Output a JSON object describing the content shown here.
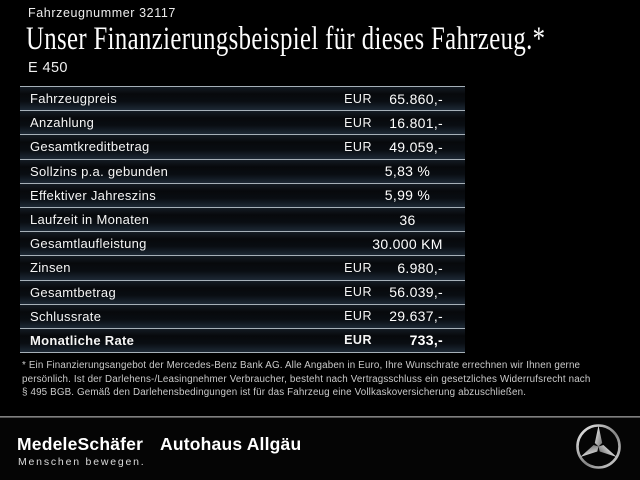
{
  "header": {
    "vehicle_number": "Fahrzeugnummer 32117",
    "title": "Unser Finanzierungsbeispiel für dieses Fahrzeug.*",
    "model": "E 450"
  },
  "finance_table": {
    "rows": [
      {
        "label": "Fahrzeugpreis",
        "currency": "EUR",
        "value": "65.860,-",
        "bold": false
      },
      {
        "label": "Anzahlung",
        "currency": "EUR",
        "value": "16.801,-",
        "bold": false
      },
      {
        "label": "Gesamtkreditbetrag",
        "currency": "EUR",
        "value": "49.059,-",
        "bold": false
      },
      {
        "label": "Sollzins p.a. gebunden",
        "currency": "",
        "value": "5,83 %",
        "bold": false
      },
      {
        "label": "Effektiver Jahreszins",
        "currency": "",
        "value": "5,99 %",
        "bold": false
      },
      {
        "label": "Laufzeit in Monaten",
        "currency": "",
        "value": "36",
        "bold": false
      },
      {
        "label": "Gesamtlaufleistung",
        "currency": "",
        "value": "30.000 KM",
        "bold": false
      },
      {
        "label": "Zinsen",
        "currency": "EUR",
        "value": "6.980,-",
        "bold": false
      },
      {
        "label": "Gesamtbetrag",
        "currency": "EUR",
        "value": "56.039,-",
        "bold": false
      },
      {
        "label": "Schlussrate",
        "currency": "EUR",
        "value": "29.637,-",
        "bold": false
      },
      {
        "label": "Monatliche Rate",
        "currency": "EUR",
        "value": "733,-",
        "bold": true
      }
    ]
  },
  "footnote": {
    "lines": [
      "* Ein Finanzierungsangebot der Mercedes-Benz Bank AG. Alle Angaben in Euro, Ihre Wunschrate errechnen wir Ihnen gerne",
      "persönlich. Ist der Darlehens-/Leasingnehmer Verbraucher, besteht nach Vertragsschluss ein gesetzliches Widerrufsrecht nach",
      "§ 495 BGB. Gemäß den Darlehensbedingungen ist für das Fahrzeug eine Vollkaskoversicherung abzuschließen."
    ]
  },
  "footer": {
    "dealer_logo": "MedeleSchäfer",
    "dealer_slogan": "Menschen bewegen.",
    "dealer_secondary": "Autohaus Allgäu",
    "brand_icon": "mercedes-star-icon"
  },
  "colors": {
    "background": "#000000",
    "separator": "#a6b0b8",
    "text": "#f5f5f5",
    "footnote_text": "#cbcbcb"
  }
}
